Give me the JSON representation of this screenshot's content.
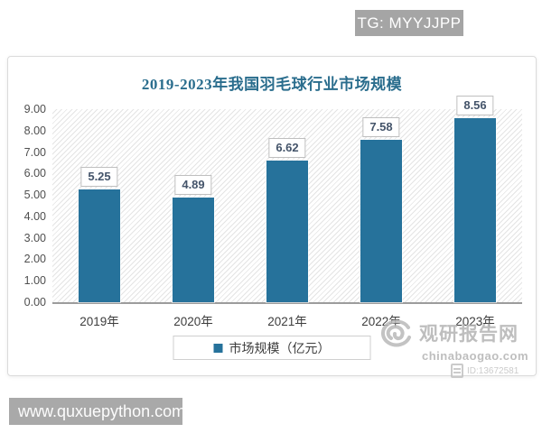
{
  "overlay": {
    "tg_badge": "TG: MYYJJPP",
    "site_badge": "www.quxuepython.com"
  },
  "chart_data": {
    "type": "bar",
    "title": "2019-2023年我国羽毛球行业市场规模",
    "categories": [
      "2019年",
      "2020年",
      "2021年",
      "2022年",
      "2023年"
    ],
    "values": [
      5.25,
      4.89,
      6.62,
      7.58,
      8.56
    ],
    "value_labels": [
      "5.25",
      "4.89",
      "6.62",
      "7.58",
      "8.56"
    ],
    "legend_label": "市场规模（亿元）",
    "legend_position": "bottom",
    "xlabel": "",
    "ylabel": "",
    "ylim": [
      0,
      9
    ],
    "ytick_step": 1,
    "yticks": [
      "0.00",
      "1.00",
      "2.00",
      "3.00",
      "4.00",
      "5.00",
      "6.00",
      "7.00",
      "8.00",
      "9.00"
    ],
    "grid": false,
    "bar_color": "#26729b",
    "plot_background": "light-gray-diagonal-hatch"
  },
  "watermark": {
    "brand": "观研报告网",
    "domain": "chinabaogao.com",
    "id": "ID:13672581"
  },
  "colors": {
    "bar": "#26729b",
    "title_text": "#2a6d8d",
    "value_label_text": "#44546a",
    "badge_bg": "#a5a5a5",
    "site_badge_bg": "#a9a9a9",
    "watermark_gray": "#b3b3b3",
    "axis_line": "#9c9c9c"
  }
}
